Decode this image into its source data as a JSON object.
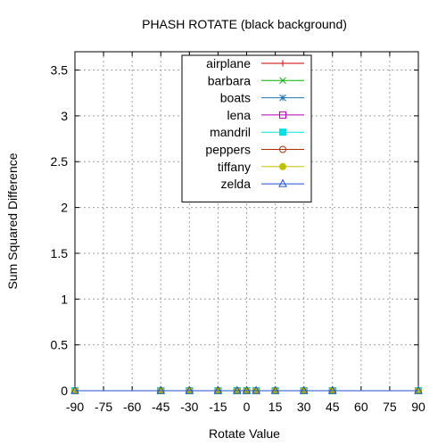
{
  "chart_data": {
    "type": "line",
    "title": "PHASH ROTATE (black background)",
    "xlabel": "Rotate Value",
    "ylabel": "Sum Squared Difference",
    "xlim": [
      -90,
      90
    ],
    "ylim": [
      0,
      3.7
    ],
    "xticks": [
      -90,
      -75,
      -60,
      -45,
      -30,
      -15,
      0,
      15,
      30,
      45,
      60,
      75,
      90
    ],
    "yticks": [
      0,
      0.5,
      1,
      1.5,
      2,
      2.5,
      3,
      3.5
    ],
    "grid": true,
    "legend_position": "top-center",
    "x": [
      -90,
      -45,
      -30,
      -15,
      -5,
      0,
      5,
      15,
      30,
      45,
      90
    ],
    "series": [
      {
        "name": "airplane",
        "color": "#cc0000",
        "marker": "plus",
        "values": [
          0,
          0,
          0,
          0,
          0,
          0,
          0,
          0,
          0,
          0,
          0
        ]
      },
      {
        "name": "barbara",
        "color": "#00b000",
        "marker": "cross",
        "values": [
          0,
          0,
          0,
          0,
          0,
          0,
          0,
          0,
          0,
          0,
          0
        ]
      },
      {
        "name": "boats",
        "color": "#1f77b4",
        "marker": "star",
        "values": [
          0,
          0,
          0,
          0,
          0,
          0,
          0,
          0,
          0,
          0,
          0
        ]
      },
      {
        "name": "lena",
        "color": "#b000b0",
        "marker": "square-open",
        "values": [
          0,
          0,
          0,
          0,
          0,
          0,
          0,
          0,
          0,
          0,
          0
        ]
      },
      {
        "name": "mandril",
        "color": "#00e0e0",
        "marker": "square-filled",
        "values": [
          0,
          0,
          0,
          0,
          0,
          0,
          0,
          0,
          0,
          0,
          0
        ]
      },
      {
        "name": "peppers",
        "color": "#b03000",
        "marker": "circle-open",
        "values": [
          0,
          0,
          0,
          0,
          0,
          0,
          0,
          0,
          0,
          0,
          0
        ]
      },
      {
        "name": "tiffany",
        "color": "#c0c000",
        "marker": "circle-filled",
        "values": [
          0,
          0,
          0,
          0,
          0,
          0,
          0,
          0,
          0,
          0,
          0
        ]
      },
      {
        "name": "zelda",
        "color": "#2050d0",
        "marker": "triangle-open",
        "values": [
          0,
          0,
          0,
          0,
          0,
          0,
          0,
          0,
          0,
          0,
          0
        ]
      }
    ]
  }
}
